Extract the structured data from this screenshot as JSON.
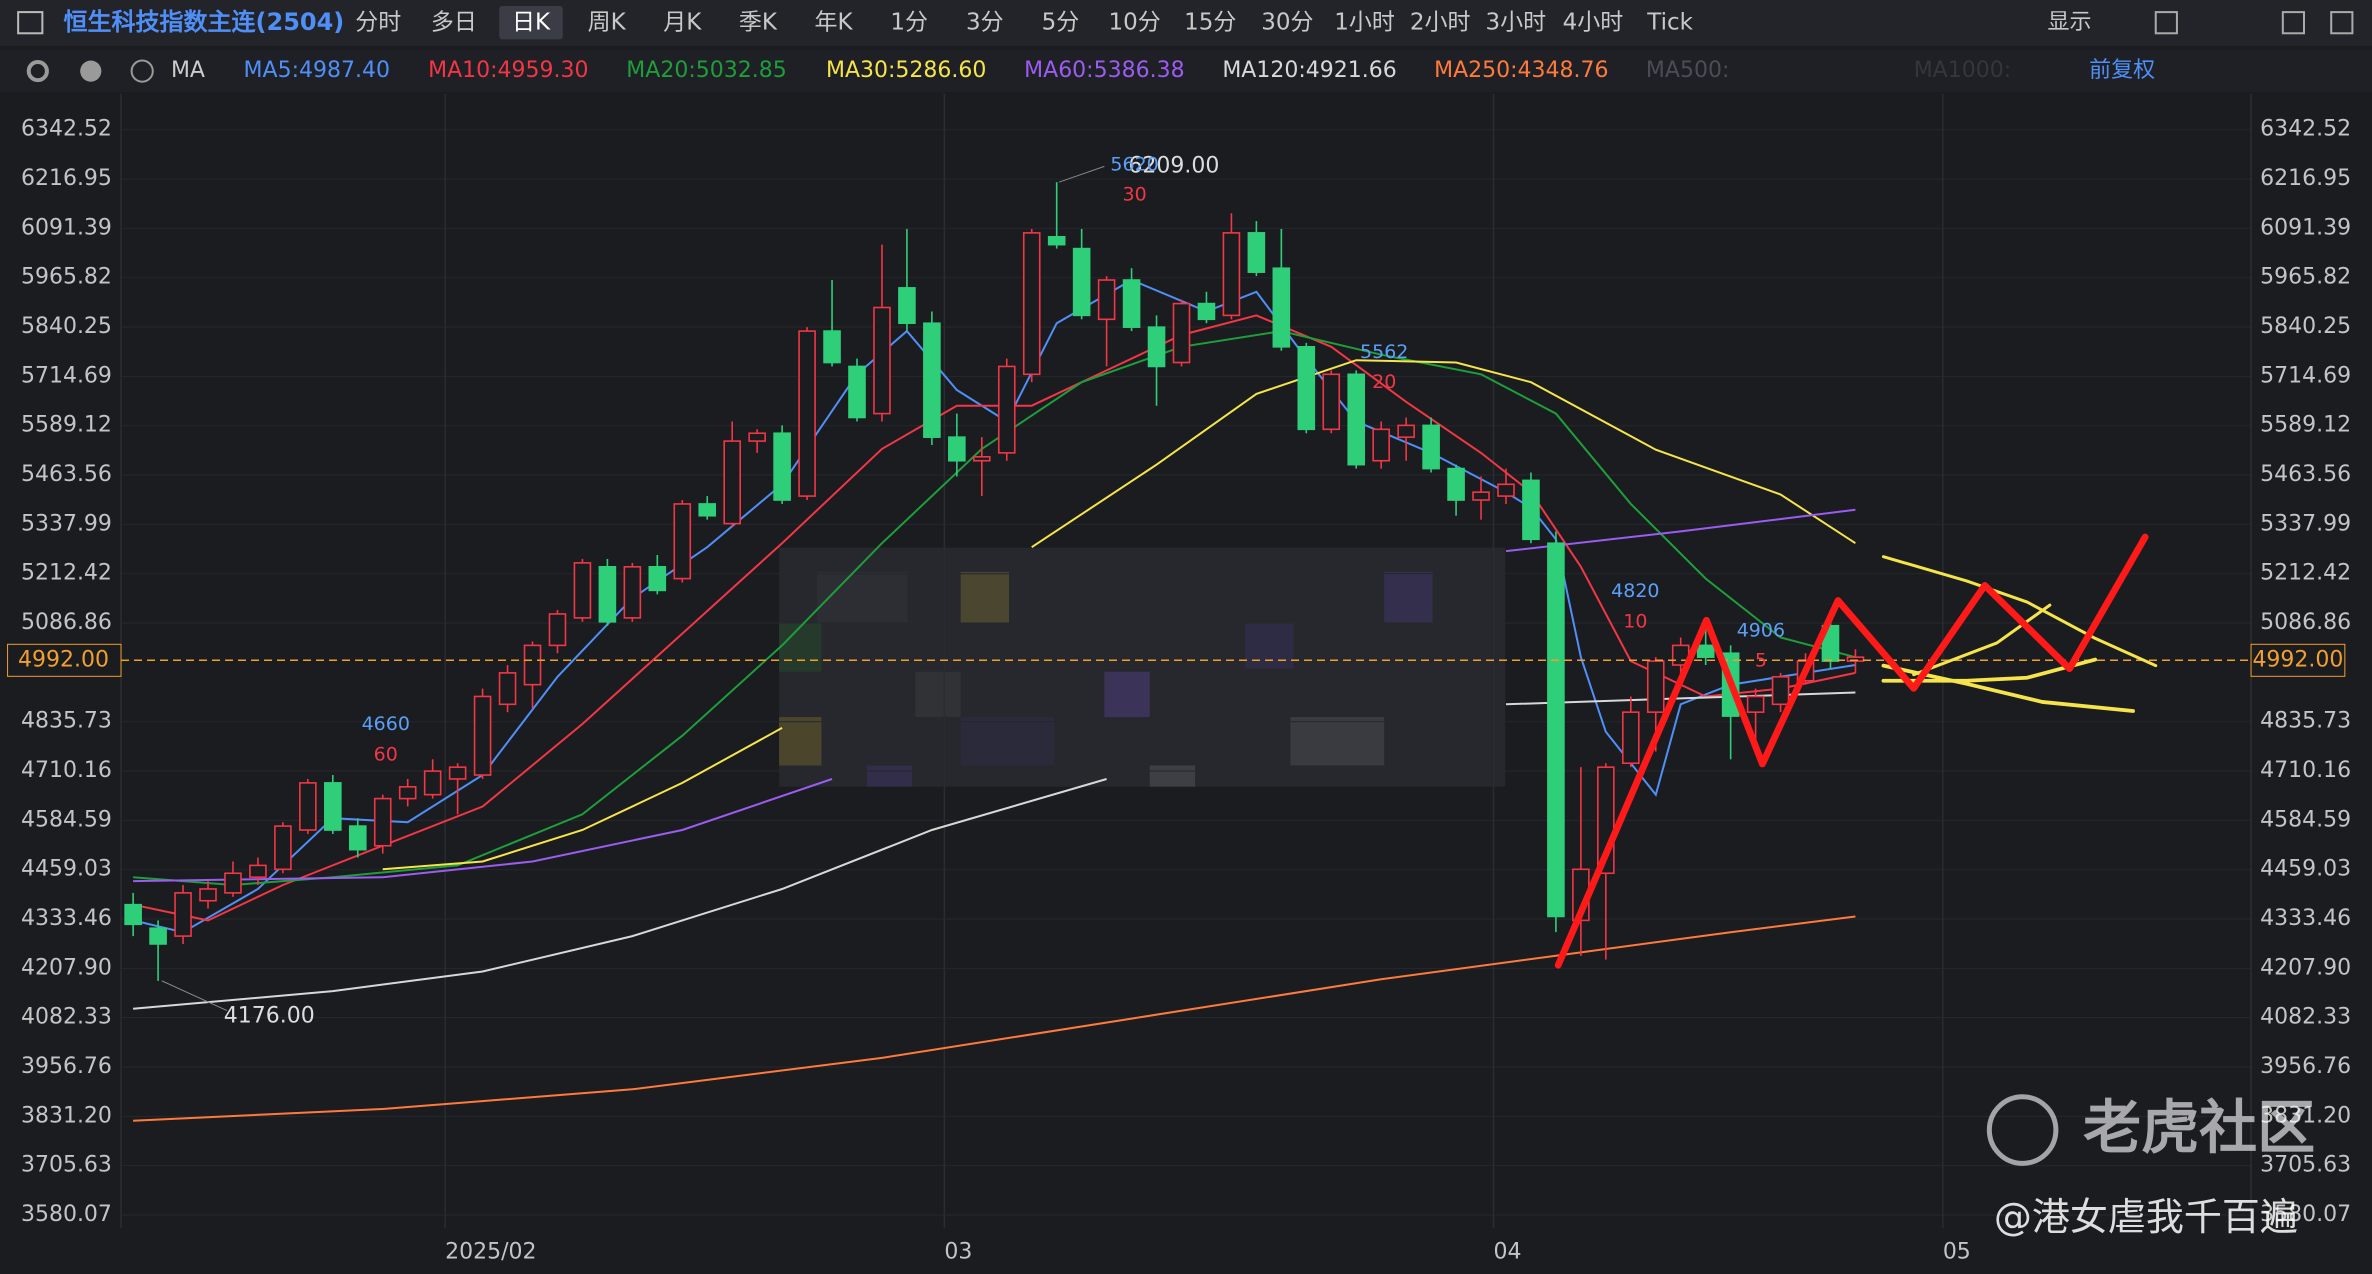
{
  "toolbar": {
    "title": "恒生科技指数主连(2504)",
    "periods": [
      "分时",
      "多日",
      "日K",
      "周K",
      "月K",
      "季K",
      "年K",
      "1分",
      "3分",
      "5分",
      "10分",
      "15分",
      "30分",
      "1小时",
      "2小时",
      "3小时",
      "4小时",
      "Tick"
    ],
    "selected": "日K",
    "display": "显示"
  },
  "ma_bar": {
    "label": "MA",
    "items": [
      {
        "text": "MA5:4987.40",
        "color": "#4f8ff7"
      },
      {
        "text": "MA10:4959.30",
        "color": "#f23645"
      },
      {
        "text": "MA20:5032.85",
        "color": "#1e9e3a"
      },
      {
        "text": "MA30:5286.60",
        "color": "#f5e44a"
      },
      {
        "text": "MA60:5386.38",
        "color": "#9b5cf0"
      },
      {
        "text": "MA120:4921.66",
        "color": "#d8d8d8"
      },
      {
        "text": "MA250:4348.76",
        "color": "#ff7a3c"
      },
      {
        "text": "MA500:",
        "color": "#4a4d55"
      },
      {
        "text": "MA1000:",
        "color": "#33363c"
      }
    ],
    "adjust": "前复权"
  },
  "chart_data": {
    "type": "candlestick",
    "up_color": "#f23645",
    "down_color": "#2fcf7a",
    "categories": [
      null,
      null,
      null,
      null,
      null,
      null,
      null,
      null,
      null,
      null,
      null,
      null,
      null,
      "2025/02",
      null,
      null,
      null,
      null,
      null,
      null,
      null,
      null,
      null,
      null,
      null,
      null,
      null,
      null,
      null,
      null,
      null,
      null,
      null,
      "03",
      null,
      null,
      null,
      null,
      null,
      null,
      null,
      null,
      null,
      null,
      null,
      null,
      null,
      null,
      null,
      null,
      null,
      null,
      null,
      null,
      null,
      "04",
      null,
      null,
      null,
      null,
      null,
      null,
      null,
      null,
      null,
      null,
      null,
      null,
      null,
      null,
      null,
      null,
      null,
      "05",
      null
    ],
    "open": [
      4370,
      4310,
      4290,
      4380,
      4400,
      4440,
      4460,
      4560,
      4680,
      4570,
      4520,
      4640,
      4650,
      4690,
      4700,
      4880,
      4930,
      5030,
      5100,
      5230,
      5100,
      5230,
      5200,
      5390,
      5340,
      5550,
      5570,
      5410,
      5830,
      5740,
      5620,
      5940,
      5850,
      5560,
      5500,
      5520,
      5720,
      6070,
      6040,
      5860,
      5960,
      5840,
      5750,
      5900,
      5870,
      6080,
      5990,
      5790,
      5580,
      5720,
      5500,
      5560,
      5590,
      5480,
      5400,
      5410,
      5450,
      5290,
      4330,
      4450,
      4730,
      4860,
      4980,
      5030,
      5010,
      4860,
      4880,
      4940,
      5080,
      4990,
      null,
      null,
      null,
      null,
      null
    ],
    "high": [
      4400,
      4330,
      4420,
      4430,
      4480,
      4490,
      4580,
      4690,
      4700,
      4590,
      4650,
      4690,
      4740,
      4730,
      4920,
      4980,
      5040,
      5120,
      5250,
      5250,
      5240,
      5260,
      5400,
      5410,
      5600,
      5580,
      5590,
      5840,
      5960,
      5760,
      6050,
      6090,
      5880,
      5620,
      5560,
      5760,
      6090,
      6209,
      6090,
      5970,
      5990,
      5870,
      5910,
      5930,
      6130,
      6110,
      6090,
      5800,
      5730,
      5730,
      5600,
      5610,
      5610,
      5490,
      5460,
      5480,
      5470,
      5320,
      4720,
      4730,
      4900,
      5000,
      5050,
      5100,
      5030,
      4920,
      4960,
      5010,
      5120,
      5020,
      null,
      null,
      null,
      null,
      null
    ],
    "low": [
      4290,
      4176,
      4270,
      4360,
      4390,
      4420,
      4450,
      4550,
      4550,
      4490,
      4500,
      4620,
      4640,
      4600,
      4690,
      4860,
      4870,
      5010,
      5090,
      5080,
      5090,
      5160,
      5190,
      5350,
      5330,
      5520,
      5390,
      5400,
      5740,
      5600,
      5600,
      5830,
      5540,
      5460,
      5410,
      5500,
      5700,
      6040,
      5860,
      5740,
      5830,
      5640,
      5740,
      5850,
      5860,
      5970,
      5780,
      5570,
      5570,
      5480,
      5480,
      5500,
      5470,
      5360,
      5350,
      5390,
      5290,
      4300,
      4240,
      4230,
      4720,
      4760,
      4940,
      4980,
      4740,
      4780,
      4860,
      4930,
      4970,
      4960,
      null,
      null,
      null,
      null,
      null
    ],
    "close": [
      4320,
      4270,
      4400,
      4410,
      4450,
      4470,
      4570,
      4680,
      4560,
      4510,
      4640,
      4670,
      4710,
      4720,
      4900,
      4960,
      5030,
      5110,
      5240,
      5090,
      5230,
      5170,
      5390,
      5360,
      5550,
      5570,
      5400,
      5830,
      5750,
      5610,
      5890,
      5850,
      5560,
      5500,
      5510,
      5740,
      6080,
      6050,
      5870,
      5960,
      5840,
      5740,
      5900,
      5860,
      6080,
      5980,
      5790,
      5580,
      5720,
      5490,
      5580,
      5590,
      5480,
      5400,
      5420,
      5440,
      5300,
      4340,
      4460,
      4720,
      4860,
      4990,
      5030,
      5000,
      4850,
      4900,
      4950,
      4990,
      4990,
      5000,
      null,
      null,
      null,
      null,
      null
    ],
    "series": [
      {
        "name": "MA5",
        "color": "#4f8ff7",
        "x": [
          0,
          2,
          5,
          8,
          11,
          14,
          17,
          20,
          23,
          26,
          29,
          31,
          33,
          35,
          37,
          40,
          43,
          45,
          47,
          49,
          52,
          55,
          56,
          57,
          58,
          59,
          61,
          62,
          64,
          66,
          69
        ],
        "values": [
          4330,
          4300,
          4410,
          4590,
          4580,
          4700,
          4950,
          5150,
          5280,
          5440,
          5720,
          5830,
          5680,
          5600,
          5850,
          5960,
          5880,
          5930,
          5760,
          5600,
          5520,
          5420,
          5380,
          5300,
          5000,
          4810,
          4650,
          4880,
          4930,
          4950,
          4980
        ]
      },
      {
        "name": "MA10",
        "color": "#f23645",
        "x": [
          0,
          3,
          6,
          10,
          14,
          18,
          22,
          26,
          30,
          33,
          36,
          39,
          42,
          45,
          48,
          51,
          54,
          56,
          58,
          60,
          63,
          66,
          69
        ],
        "values": [
          4370,
          4330,
          4420,
          4520,
          4620,
          4830,
          5060,
          5290,
          5530,
          5640,
          5640,
          5730,
          5820,
          5870,
          5790,
          5650,
          5520,
          5420,
          5230,
          4990,
          4900,
          4920,
          4960
        ]
      },
      {
        "name": "MA20",
        "color": "#1e9e3a",
        "x": [
          0,
          4,
          8,
          13,
          18,
          22,
          26,
          30,
          34,
          38,
          42,
          46,
          50,
          54,
          57,
          60,
          63,
          66,
          69
        ],
        "values": [
          4440,
          4420,
          4440,
          4470,
          4600,
          4800,
          5030,
          5290,
          5530,
          5700,
          5790,
          5830,
          5770,
          5720,
          5620,
          5390,
          5200,
          5050,
          5000
        ]
      },
      {
        "name": "MA30",
        "color": "#f5e44a",
        "x": [
          10,
          14,
          18,
          22,
          26,
          28,
          36,
          41,
          45,
          49,
          53,
          56,
          61,
          66,
          69
        ],
        "values": [
          4460,
          4480,
          4560,
          4680,
          4820,
          null,
          5280,
          5490,
          5670,
          5756,
          5750,
          5700,
          5528,
          5414,
          5290
        ]
      },
      {
        "name": "MA60",
        "color": "#9b5cf0",
        "x": [
          0,
          10,
          16,
          22,
          28,
          30,
          55,
          62,
          69
        ],
        "values": [
          4430,
          4440,
          4480,
          4560,
          4690,
          null,
          5270,
          5320,
          5375
        ]
      },
      {
        "name": "MA120",
        "color": "#d8d8d8",
        "x": [
          0,
          8,
          14,
          20,
          26,
          32,
          39,
          45,
          55,
          62,
          69
        ],
        "values": [
          4105,
          4150,
          4200,
          4290,
          4410,
          4560,
          4690,
          null,
          4880,
          4895,
          4910
        ]
      },
      {
        "name": "MA250",
        "color": "#ff7a3c",
        "x": [
          0,
          10,
          20,
          30,
          40,
          50,
          57,
          64,
          69
        ],
        "values": [
          3820,
          3850,
          3900,
          3980,
          4080,
          4180,
          4240,
          4300,
          4340
        ]
      }
    ],
    "ylim": [
      3546,
      6434
    ],
    "yticks": [
      6342.52,
      6216.95,
      6091.39,
      5965.82,
      5840.25,
      5714.69,
      5589.12,
      5463.56,
      5337.99,
      5212.42,
      5086.86,
      4835.73,
      4710.16,
      4584.59,
      4459.03,
      4333.46,
      {
        "value": 4207.9,
        "label": "4207.90"
      },
      4082.33,
      3956.76,
      {
        "value": 3831.2,
        "label": "3831.20"
      },
      3705.63,
      3580.07
    ],
    "last_price": {
      "value": 4992,
      "label": "4992.00"
    },
    "extremes": [
      {
        "value": 6209,
        "label": "6209.00"
      },
      {
        "value": 4176,
        "label": "4176.00"
      }
    ],
    "markers": [
      {
        "price": "4660",
        "days": "60"
      },
      {
        "price": "5620",
        "days": "30"
      },
      {
        "price": "5562",
        "days": "20"
      },
      {
        "price": "4820",
        "days": "10"
      },
      {
        "price": "4906",
        "days": "5"
      }
    ]
  },
  "watermark": {
    "brand": "老虎社区",
    "author": "@港女虐我千百遍"
  }
}
